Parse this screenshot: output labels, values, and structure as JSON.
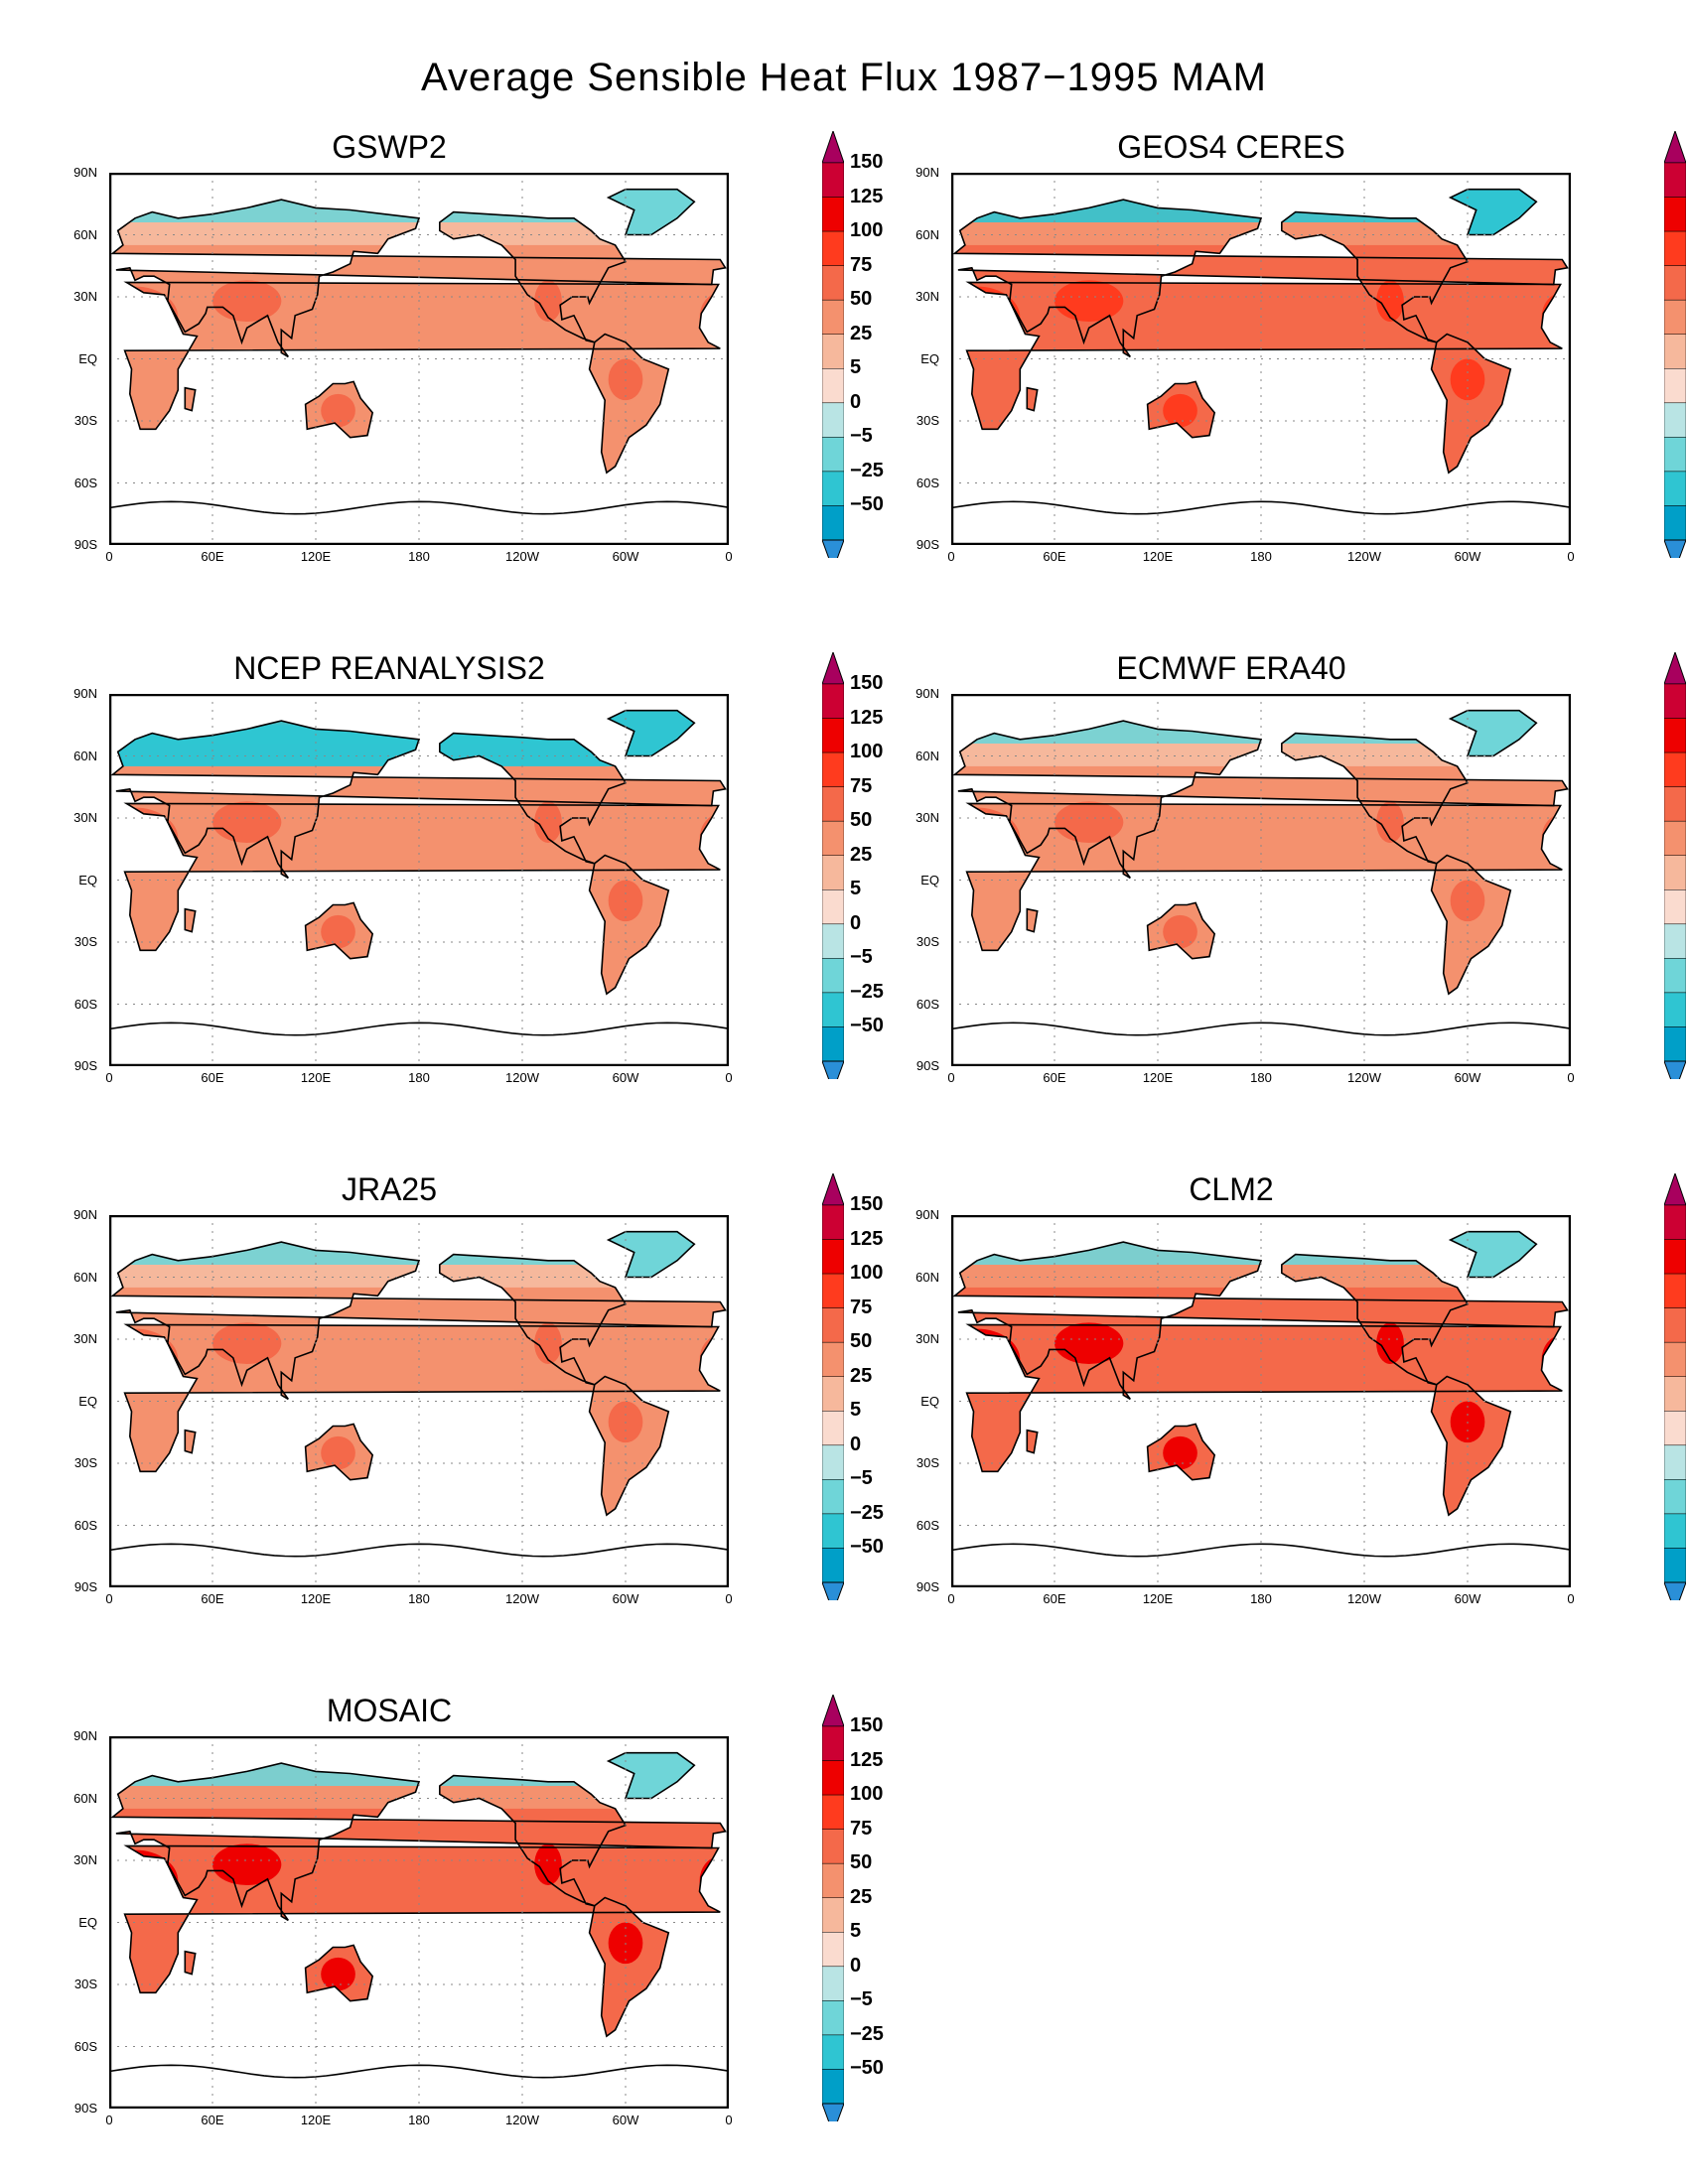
{
  "title": "Average Sensible Heat Flux 1987−1995  MAM",
  "lat_labels": [
    "90N",
    "60N",
    "30N",
    "EQ",
    "30S",
    "60S",
    "90S"
  ],
  "lon_labels": [
    "0",
    "60E",
    "120E",
    "180",
    "120W",
    "60W",
    "0"
  ],
  "colorbar": {
    "labels": [
      "150",
      "125",
      "100",
      "75",
      "50",
      "25",
      "5",
      "0",
      "−5",
      "−25",
      "−50"
    ],
    "colors": [
      "#a8005e",
      "#cc0033",
      "#ee0000",
      "#ff3b1e",
      "#f4694a",
      "#f4916e",
      "#f6b89c",
      "#fadbcf",
      "#b9e4e4",
      "#6fd5d8",
      "#2fc5d2",
      "#009fc8",
      "#2a8fd8"
    ]
  },
  "panels": [
    {
      "name": "GSWP2",
      "scheme": "moderate"
    },
    {
      "name": "GEOS4 CERES",
      "scheme": "warm"
    },
    {
      "name": "NCEP REANALYSIS2",
      "scheme": "cold-north"
    },
    {
      "name": "ECMWF ERA40",
      "scheme": "moderate"
    },
    {
      "name": "JRA25",
      "scheme": "moderate"
    },
    {
      "name": "CLM2",
      "scheme": "hot"
    },
    {
      "name": "MOSAIC",
      "scheme": "hot"
    }
  ]
}
